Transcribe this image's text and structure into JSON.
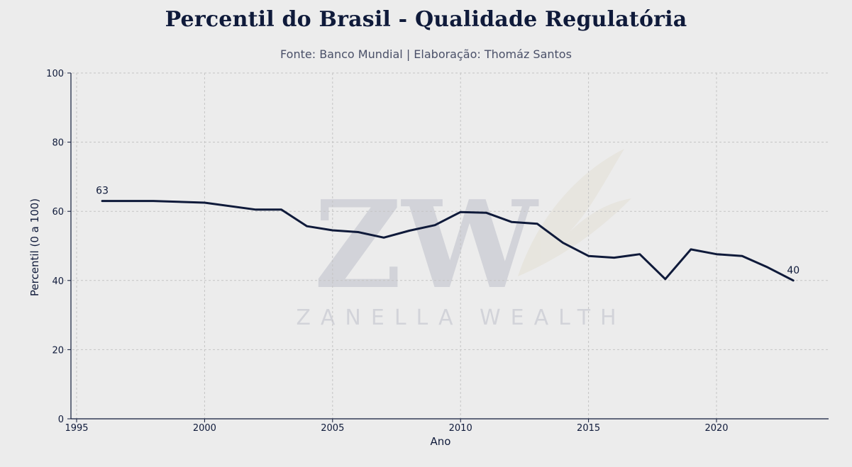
{
  "chart_data": {
    "type": "line",
    "title": "Percentil do Brasil - Qualidade Regulatória",
    "subtitle": "Fonte: Banco Mundial | Elaboração: Thomáz Santos",
    "xlabel": "Ano",
    "ylabel": "Percentil (0 a 100)",
    "xlim": [
      1995,
      2025
    ],
    "ylim": [
      0,
      100
    ],
    "x_ticks": [
      1995,
      2000,
      2005,
      2010,
      2015,
      2020
    ],
    "y_ticks": [
      0,
      20,
      40,
      60,
      80,
      100
    ],
    "grid": true,
    "line_color": "#0f1a3a",
    "series": [
      {
        "x": [
          1996,
          1998,
          2000,
          2002,
          2003,
          2004,
          2005,
          2006,
          2007,
          2008,
          2009,
          2010,
          2011,
          2012,
          2013,
          2014,
          2015,
          2016,
          2017,
          2018,
          2019,
          2020,
          2021,
          2022,
          2023
        ],
        "values": [
          63.0,
          63.0,
          62.5,
          60.5,
          60.5,
          55.7,
          54.5,
          54.0,
          52.4,
          54.4,
          56.0,
          59.8,
          59.6,
          56.9,
          56.4,
          50.9,
          47.1,
          46.6,
          47.6,
          40.4,
          49.0,
          47.6,
          47.1,
          43.8,
          40.0
        ]
      }
    ],
    "annotations": [
      {
        "x": 1996,
        "y": 63,
        "text": "63"
      },
      {
        "x": 2023,
        "y": 40,
        "text": "40"
      }
    ],
    "watermark": "ZANELLA WEALTH"
  }
}
